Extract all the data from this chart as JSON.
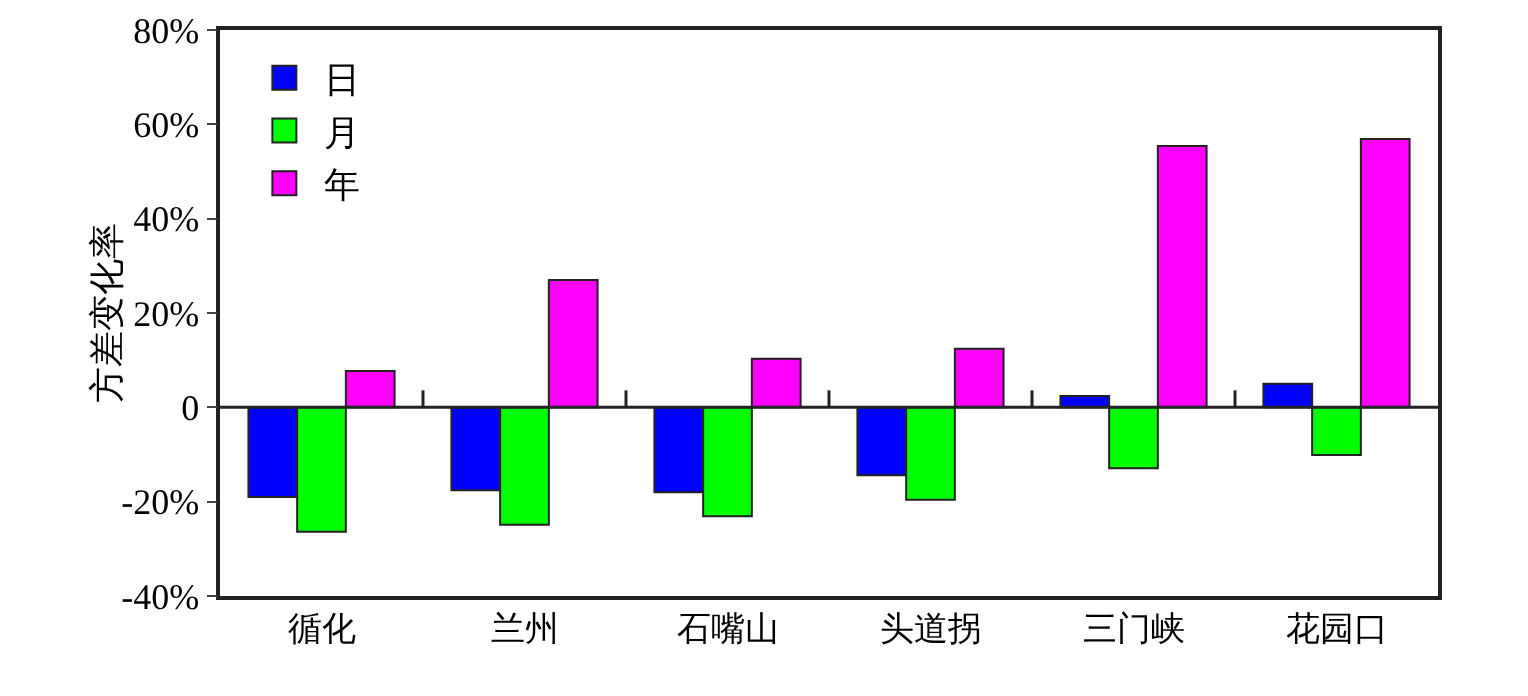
{
  "chart_data": {
    "type": "bar",
    "ylabel": "方差变化率",
    "categories": [
      "循化",
      "兰州",
      "石嘴山",
      "头道拐",
      "三门峡",
      "花园口"
    ],
    "series": [
      {
        "name": "日",
        "color": "#0000ff",
        "values": [
          -19.0,
          -17.6,
          -18.0,
          -14.4,
          2.4,
          5.0
        ]
      },
      {
        "name": "月",
        "color": "#00ff00",
        "values": [
          -26.4,
          -24.9,
          -23.1,
          -19.6,
          -12.9,
          -10.1
        ]
      },
      {
        "name": "年",
        "color": "#ff00ff",
        "values": [
          7.7,
          27.0,
          10.3,
          12.4,
          55.4,
          56.9
        ]
      }
    ],
    "ylim": [
      -40,
      80
    ],
    "yticks": [
      {
        "value": -40,
        "label": "-40%"
      },
      {
        "value": -20,
        "label": "-20%"
      },
      {
        "value": 0,
        "label": "0"
      },
      {
        "value": 20,
        "label": "20%"
      },
      {
        "value": 40,
        "label": "40%"
      },
      {
        "value": 60,
        "label": "60%"
      },
      {
        "value": 80,
        "label": "80%"
      }
    ],
    "legend": "top left"
  }
}
